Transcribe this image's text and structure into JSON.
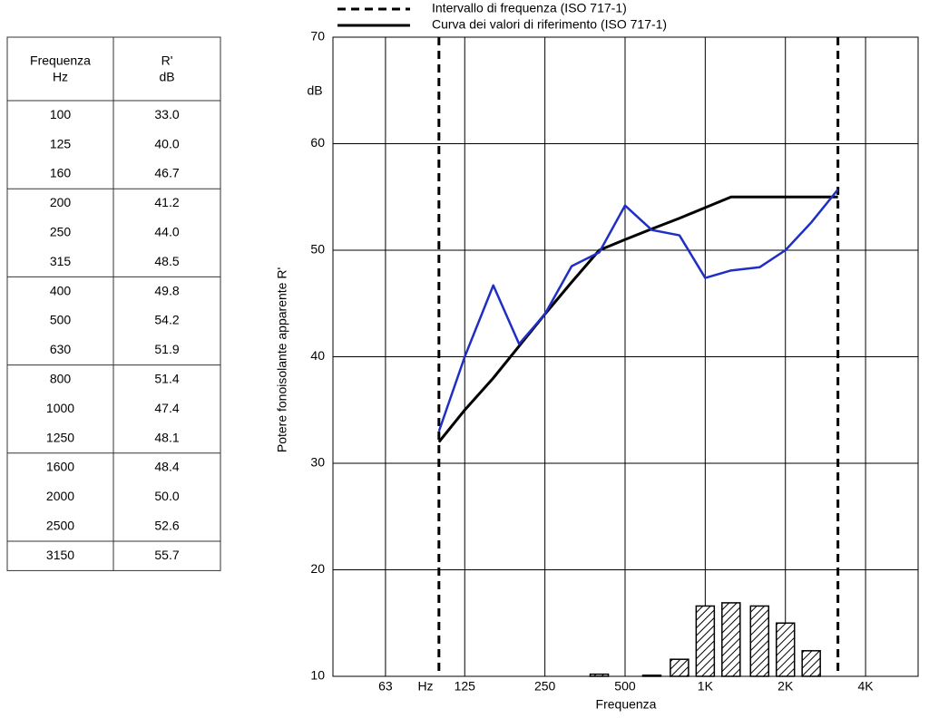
{
  "table": {
    "columns": [
      {
        "name": "Frequenza",
        "unit": "Hz"
      },
      {
        "name": "R'",
        "unit": "dB"
      }
    ],
    "rows": [
      [
        "100",
        "33.0"
      ],
      [
        "125",
        "40.0"
      ],
      [
        "160",
        "46.7"
      ],
      [
        "200",
        "41.2"
      ],
      [
        "250",
        "44.0"
      ],
      [
        "315",
        "48.5"
      ],
      [
        "400",
        "49.8"
      ],
      [
        "500",
        "54.2"
      ],
      [
        "630",
        "51.9"
      ],
      [
        "800",
        "51.4"
      ],
      [
        "1000",
        "47.4"
      ],
      [
        "1250",
        "48.1"
      ],
      [
        "1600",
        "48.4"
      ],
      [
        "2000",
        "50.0"
      ],
      [
        "2500",
        "52.6"
      ],
      [
        "3150",
        "55.7"
      ]
    ]
  },
  "chart_data": {
    "type": "line",
    "x": [
      100,
      125,
      160,
      200,
      250,
      315,
      400,
      500,
      630,
      800,
      1000,
      1250,
      1600,
      2000,
      2500,
      3150
    ],
    "series": [
      {
        "color": "#1f2ec4",
        "values": [
          33.0,
          40.0,
          46.7,
          41.2,
          44.0,
          48.5,
          49.8,
          54.2,
          51.9,
          51.4,
          47.4,
          48.1,
          48.4,
          50.0,
          52.6,
          55.7
        ]
      },
      {
        "name": "Curva dei valori di riferimento (ISO 717-1)",
        "color": "#000000",
        "values": [
          32,
          35,
          38,
          41,
          44,
          47,
          50,
          51,
          52,
          53,
          54,
          55,
          55,
          55,
          55,
          55
        ]
      }
    ],
    "deviations": {
      "values": [
        0,
        0,
        0,
        0,
        0,
        0,
        0.2,
        0,
        0.1,
        1.6,
        6.6,
        6.9,
        6.6,
        5.0,
        2.4,
        0
      ]
    },
    "range": {
      "name": "Intervallo di frequenza (ISO 717-1)",
      "values": [
        100,
        3150
      ]
    },
    "xlim": [
      40,
      6300
    ],
    "xscale": "log",
    "xticks": [
      63,
      125,
      250,
      500,
      {
        "value": 1000,
        "label": "1K"
      },
      {
        "value": 2000,
        "label": "2K"
      },
      {
        "value": 4000,
        "label": "4K"
      }
    ],
    "x_unit": "Hz",
    "ylim": [
      10,
      70
    ],
    "yticks": [
      10,
      20,
      30,
      40,
      50,
      60,
      70
    ],
    "y_unit": "dB",
    "xlabel": "Frequenza",
    "ylabel": "Potere fonoisolante apparente R'",
    "grid": true
  }
}
